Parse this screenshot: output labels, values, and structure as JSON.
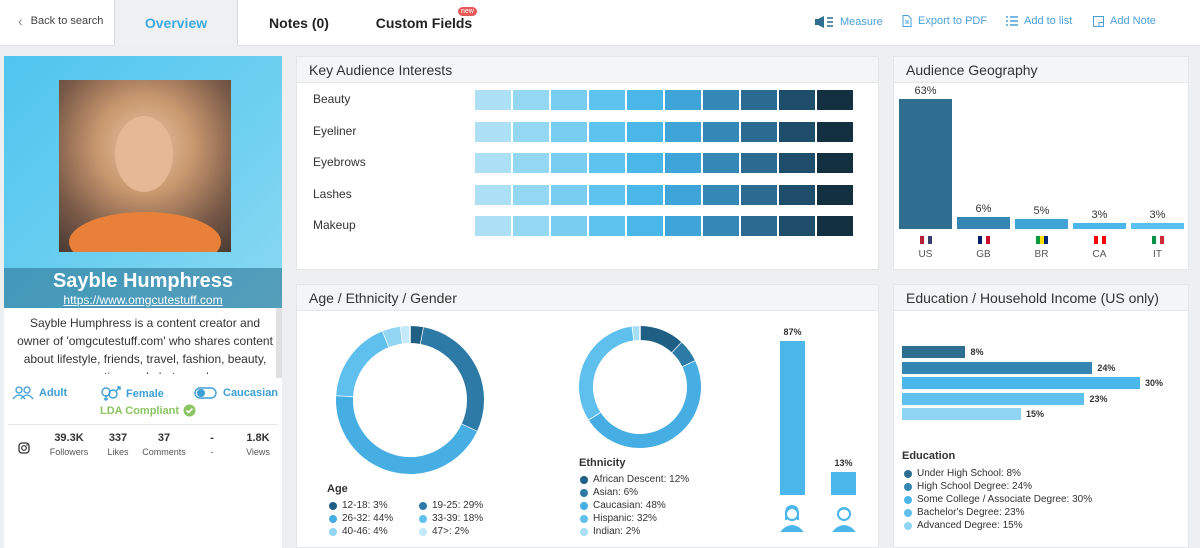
{
  "topbar": {
    "back_label": "Back to search",
    "tabs": [
      {
        "label": "Overview",
        "active": true
      },
      {
        "label": "Notes (0)"
      },
      {
        "label": "Custom Fields",
        "badge": "new"
      }
    ],
    "actions": [
      {
        "label": "Measure",
        "icon": "megaphone-icon"
      },
      {
        "label": "Export to PDF",
        "icon": "pdf-icon"
      },
      {
        "label": "Add to list",
        "icon": "list-icon"
      },
      {
        "label": "Add Note",
        "icon": "note-icon"
      }
    ]
  },
  "profile": {
    "name": "Sayble Humphress",
    "url": "https://www.omgcutestuff.com",
    "bio": "Sayble Humphress is a content creator and owner of 'omgcutestuff.com' who shares content about lifestyle, friends, travel, fashion, beauty, cosmetics, and photography.",
    "attributes": [
      {
        "label": "Adult",
        "icon": "people-icon"
      },
      {
        "label": "Female",
        "icon": "gender-icon"
      },
      {
        "label": "Caucasian",
        "icon": "toggle-icon"
      }
    ],
    "compliance": "LDA Compliant",
    "platform_icon": "instagram-icon",
    "stats": [
      {
        "value": "39.3K",
        "label": "Followers"
      },
      {
        "value": "337",
        "label": "Likes"
      },
      {
        "value": "37",
        "label": "Comments"
      },
      {
        "value": "-",
        "label": "-"
      },
      {
        "value": "1.8K",
        "label": "Views"
      }
    ]
  },
  "interests": {
    "title": "Key Audience Interests",
    "items": [
      "Beauty",
      "Eyeliner",
      "Eyebrows",
      "Lashes",
      "Makeup"
    ],
    "scale_colors": [
      "#aee0f5",
      "#93d7f3",
      "#79cdf1",
      "#5ec3ee",
      "#4ab7e8",
      "#3fa4d8",
      "#3587b5",
      "#2b6b92",
      "#1f4e6c",
      "#12303f"
    ]
  },
  "geography": {
    "title": "Audience Geography",
    "chart_data": {
      "type": "bar",
      "categories": [
        "US",
        "GB",
        "BR",
        "CA",
        "IT"
      ],
      "values": [
        63,
        6,
        5,
        3,
        3
      ],
      "value_labels": [
        "63%",
        "6%",
        "5%",
        "3%",
        "3%"
      ],
      "colors": [
        "#2d6e91",
        "#3586b3",
        "#3fa3d6",
        "#4bb6ea",
        "#58c1ef"
      ]
    }
  },
  "demographics": {
    "title": "Age / Ethnicity / Gender",
    "age": {
      "heading": "Age",
      "chart_data": {
        "type": "pie",
        "categories": [
          "12-18",
          "19-25",
          "26-32",
          "33-39",
          "40-46",
          "47>"
        ],
        "values": [
          3,
          29,
          44,
          18,
          4,
          2
        ],
        "labels": [
          "12-18: 3%",
          "19-25: 29%",
          "26-32: 44%",
          "33-39: 18%",
          "40-46: 4%",
          "47>: 2%"
        ],
        "colors": [
          "#1f5f84",
          "#2d7aa6",
          "#47aee3",
          "#5fc0ee",
          "#92d6f4",
          "#c4e9f9"
        ]
      }
    },
    "ethnicity": {
      "heading": "Ethnicity",
      "chart_data": {
        "type": "pie",
        "categories": [
          "African Descent",
          "Asian",
          "Caucasian",
          "Hispanic",
          "Indian"
        ],
        "values": [
          12,
          6,
          48,
          32,
          2
        ],
        "labels": [
          "African Descent: 12%",
          "Asian: 6%",
          "Caucasian: 48%",
          "Hispanic: 32%",
          "Indian: 2%"
        ],
        "colors": [
          "#1f5f84",
          "#2d7aa6",
          "#47aee3",
          "#5fc0ee",
          "#a6def6"
        ]
      }
    },
    "gender": {
      "chart_data": {
        "type": "bar",
        "categories": [
          "Female",
          "Male"
        ],
        "values": [
          87,
          13
        ],
        "value_labels": [
          "87%",
          "13%"
        ],
        "color": "#4bb6ea"
      },
      "icons": [
        "female-person-icon",
        "male-person-icon"
      ]
    }
  },
  "education": {
    "title": "Education / Household Income (US only)",
    "heading": "Education",
    "chart_data": {
      "type": "bar",
      "orientation": "horizontal",
      "categories": [
        "Under High School",
        "High School Degree",
        "Some College / Associate Degree",
        "Bachelor's Degree",
        "Advanced Degree"
      ],
      "values": [
        8,
        24,
        30,
        23,
        15
      ],
      "value_labels": [
        "8%",
        "24%",
        "30%",
        "23%",
        "15%"
      ],
      "labels": [
        "Under High School: 8%",
        "High School Degree: 24%",
        "Some College / Associate Degree: 30%",
        "Bachelor's Degree: 23%",
        "Advanced Degree: 15%"
      ],
      "colors": [
        "#2d6e91",
        "#3586b3",
        "#4bb6ea",
        "#5fc0ee",
        "#8fd4f3"
      ]
    }
  }
}
